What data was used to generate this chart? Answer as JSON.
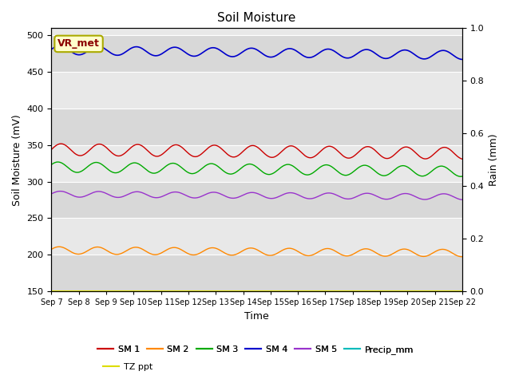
{
  "title": "Soil Moisture",
  "xlabel": "Time",
  "ylabel_left": "Soil Moisture (mV)",
  "ylabel_right": "Rain (mm)",
  "ylim_left": [
    150,
    510
  ],
  "ylim_right": [
    0.0,
    1.0
  ],
  "yticks_left": [
    150,
    200,
    250,
    300,
    350,
    400,
    450,
    500
  ],
  "yticks_right": [
    0.0,
    0.2,
    0.4,
    0.6,
    0.8,
    1.0
  ],
  "num_points": 500,
  "series": {
    "SM1": {
      "color": "#cc0000",
      "base": 344,
      "amplitude": 8,
      "period": 1.4,
      "trend": -0.35,
      "phase": 0.0
    },
    "SM2": {
      "color": "#ff8800",
      "base": 206,
      "amplitude": 5,
      "period": 1.4,
      "trend": -0.25,
      "phase": 0.3
    },
    "SM3": {
      "color": "#00aa00",
      "base": 320,
      "amplitude": 7,
      "period": 1.4,
      "trend": -0.4,
      "phase": 0.5
    },
    "SM4": {
      "color": "#0000cc",
      "base": 480,
      "amplitude": 6,
      "period": 1.4,
      "trend": -0.45,
      "phase": 0.2
    },
    "SM5": {
      "color": "#9933cc",
      "base": 283,
      "amplitude": 4,
      "period": 1.4,
      "trend": -0.25,
      "phase": 0.1
    },
    "Precip_mm": {
      "color": "#00bbbb",
      "base": 150,
      "amplitude": 0,
      "period": 1.0,
      "trend": 0,
      "phase": 0
    },
    "TZ_ppt": {
      "color": "#dddd00",
      "base": 150,
      "amplitude": 0,
      "period": 1.0,
      "trend": 0,
      "phase": 0
    }
  },
  "legend_labels_row1": [
    "SM 1",
    "SM 2",
    "SM 3",
    "SM 4",
    "SM 5",
    "Precip_mm"
  ],
  "legend_colors_row1": [
    "#cc0000",
    "#ff8800",
    "#00aa00",
    "#0000cc",
    "#9933cc",
    "#00bbbb"
  ],
  "legend_labels_row2": [
    "TZ ppt"
  ],
  "legend_colors_row2": [
    "#dddd00"
  ],
  "annotation_text": "VR_met",
  "annotation_color": "#8b0000",
  "annotation_bg": "#ffffcc",
  "annotation_edge": "#aaaa00",
  "bg_bands": [
    [
      150,
      200,
      "#d8d8d8"
    ],
    [
      200,
      250,
      "#e8e8e8"
    ],
    [
      250,
      300,
      "#d8d8d8"
    ],
    [
      300,
      350,
      "#e8e8e8"
    ],
    [
      350,
      400,
      "#d8d8d8"
    ],
    [
      400,
      450,
      "#e8e8e8"
    ],
    [
      450,
      500,
      "#d8d8d8"
    ],
    [
      500,
      510,
      "#e8e8e8"
    ]
  ],
  "tick_dates": [
    "Sep 7",
    "Sep 8",
    "Sep 9",
    "Sep 10",
    "Sep 11",
    "Sep 12",
    "Sep 13",
    "Sep 14",
    "Sep 15",
    "Sep 16",
    "Sep 17",
    "Sep 18",
    "Sep 19",
    "Sep 20",
    "Sep 21",
    "Sep 22"
  ]
}
